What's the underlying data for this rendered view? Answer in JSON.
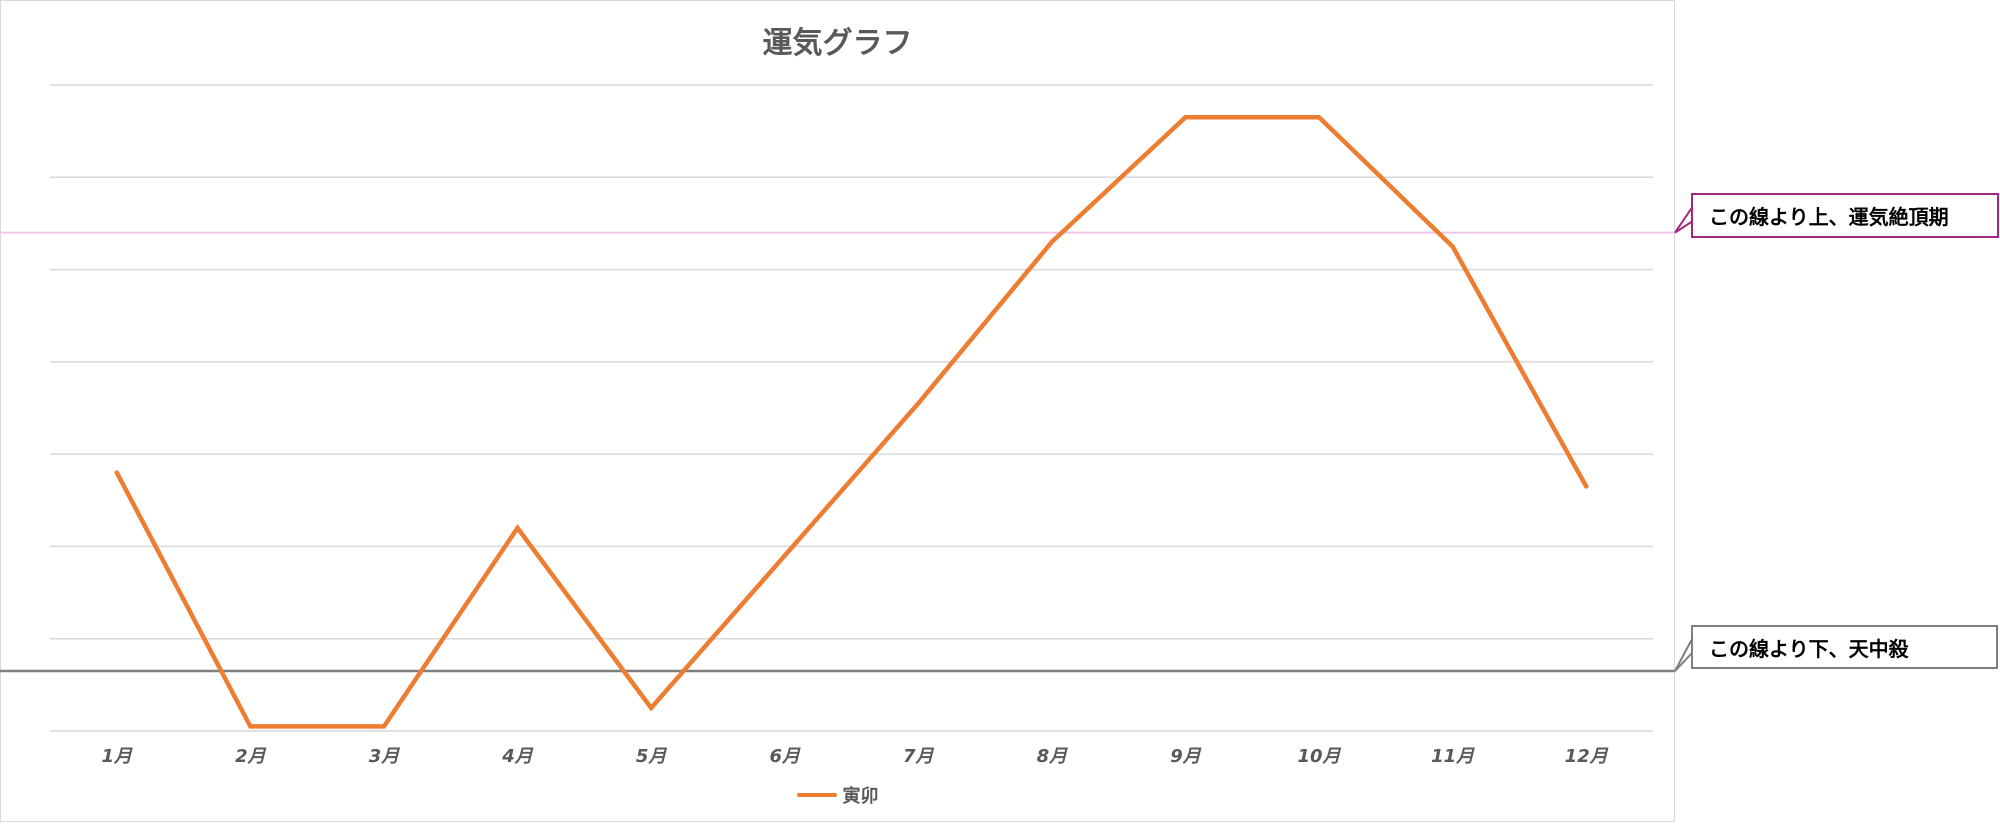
{
  "chart_data": {
    "type": "line",
    "title": "運気グラフ",
    "xlabel": "",
    "ylabel": "",
    "categories": [
      "1月",
      "2月",
      "3月",
      "4月",
      "5月",
      "6月",
      "7月",
      "8月",
      "9月",
      "10月",
      "11月",
      "12月"
    ],
    "series": [
      {
        "name": "寅卯",
        "color": "#ed7d31",
        "values": [
          2.8,
          0.05,
          0.05,
          2.2,
          0.25,
          1.9,
          3.55,
          5.3,
          6.65,
          6.65,
          5.25,
          2.65
        ]
      }
    ],
    "ylim": [
      0,
      7
    ],
    "y_ticks": [
      0,
      1,
      2,
      3,
      4,
      5,
      6,
      7
    ],
    "grid": true,
    "show_y_tick_labels": false,
    "legend": "bottom",
    "reference_lines": [
      {
        "id": "upper",
        "value": 5.4,
        "color": "#f2c4e8",
        "label": "この線より上、運気絶頂期",
        "border_color": "#a0287f"
      },
      {
        "id": "lower",
        "value": 0.65,
        "color": "#7f7f7f",
        "label": "この線より下、天中殺",
        "border_color": "#7f7f7f"
      }
    ]
  }
}
